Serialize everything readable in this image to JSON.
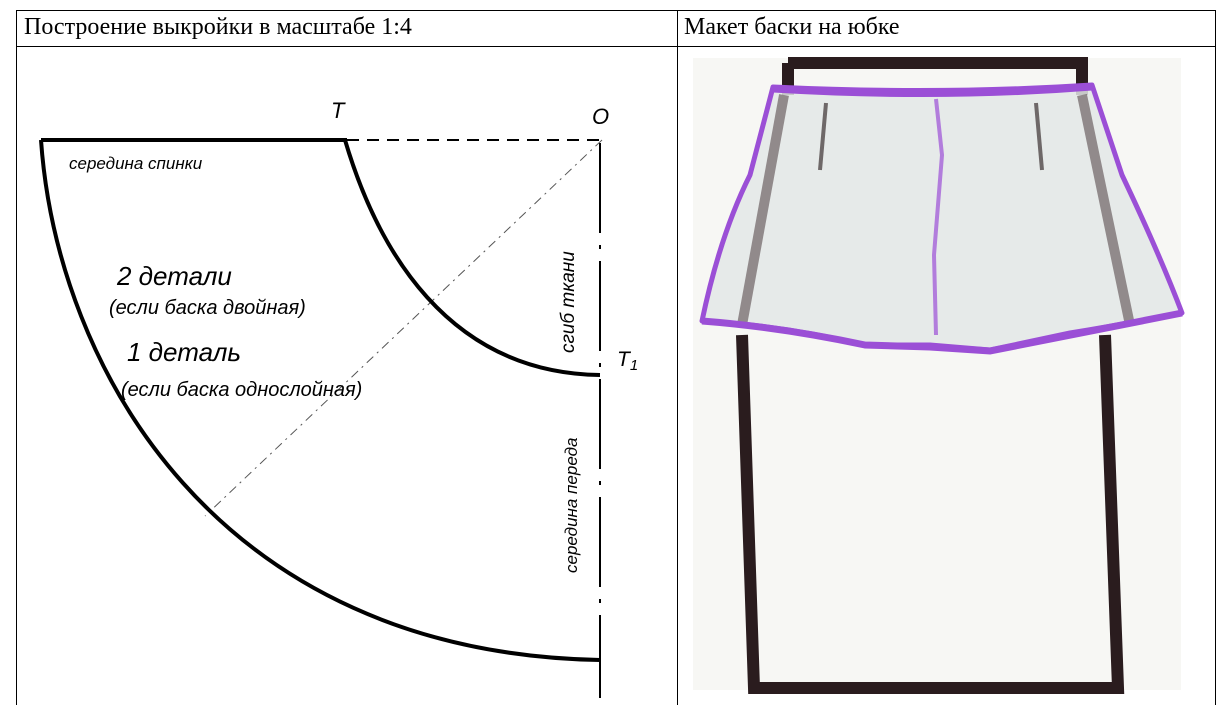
{
  "headers": {
    "left": "Построение выкройки в масштабе 1:4",
    "right": "Макет баски на юбке"
  },
  "pattern": {
    "point_T": "T",
    "point_O": "O",
    "point_T1_main": "T",
    "point_T1_sub": "1",
    "label_back_center": "середина спинки",
    "label_fold": "сгиб ткани",
    "label_front_center": "середина переда",
    "count_two": "2 детали",
    "note_double": "(если баска двойная)",
    "count_one": "1 деталь",
    "note_single": "(если баска однослойная)"
  },
  "colors": {
    "frame": "#2a1c1e",
    "peplum_edge": "#9b4fd6",
    "peplum_fill": "#e3e8e6"
  }
}
